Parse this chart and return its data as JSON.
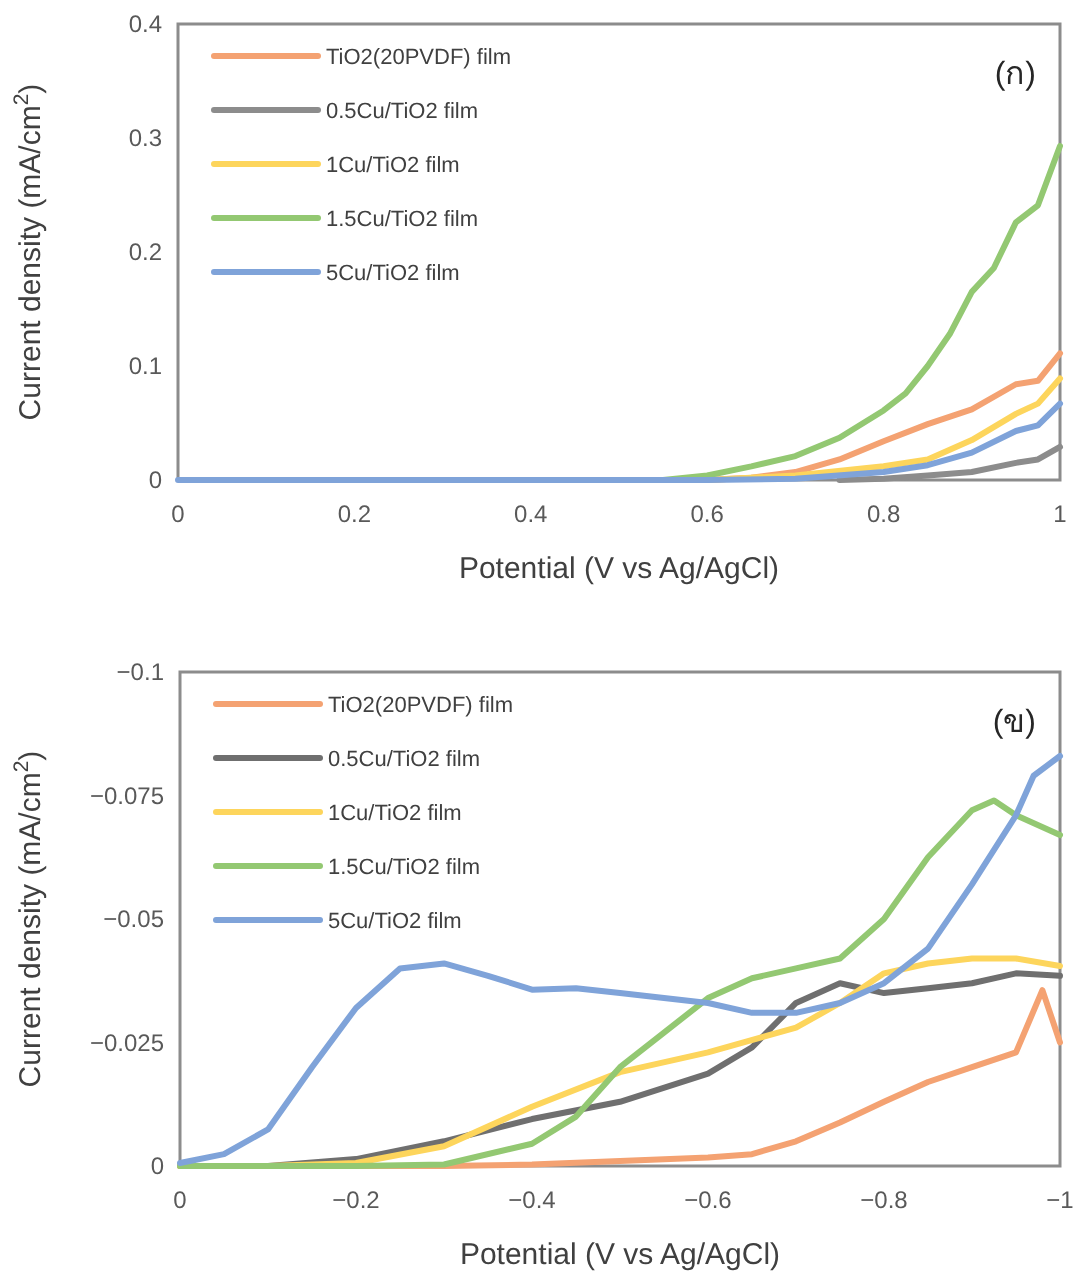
{
  "chart_data": [
    {
      "type": "line",
      "xlabel": "Potential (V vs Ag/AgCl)",
      "ylabel": "Current density (mA/cm$^{2}$)",
      "annotations": [
        "(ก)"
      ],
      "legend": "top left",
      "xlim": [
        0,
        1
      ],
      "ylim": [
        0,
        0.4
      ],
      "xticks": [
        0,
        0.2,
        0.4,
        0.6,
        0.8,
        1
      ],
      "yticks": [
        0,
        0.1,
        0.2,
        0.3,
        0.4
      ],
      "series": [
        {
          "name": "TiO2(20PVDF) film",
          "color": "#f4a272",
          "x": [
            0.6,
            0.65,
            0.7,
            0.75,
            0.8,
            0.85,
            0.9,
            0.95,
            0.975,
            1.0
          ],
          "values": [
            0,
            0.002,
            0.007,
            0.018,
            0.034,
            0.049,
            0.062,
            0.084,
            0.087,
            0.111
          ]
        },
        {
          "name": "0.5Cu/TiO2 film",
          "color": "#8c8c8c",
          "x": [
            0.75,
            0.8,
            0.85,
            0.9,
            0.95,
            0.975,
            1.0
          ],
          "values": [
            0,
            0.001,
            0.004,
            0.007,
            0.015,
            0.018,
            0.029
          ]
        },
        {
          "name": "1Cu/TiO2 film",
          "color": "#fdd55c",
          "x": [
            0.6,
            0.7,
            0.8,
            0.85,
            0.9,
            0.95,
            0.975,
            1.0
          ],
          "values": [
            0,
            0.004,
            0.012,
            0.018,
            0.035,
            0.058,
            0.067,
            0.089
          ]
        },
        {
          "name": "1.5Cu/TiO2 film",
          "color": "#93c872",
          "x": [
            0.55,
            0.6,
            0.65,
            0.7,
            0.75,
            0.8,
            0.825,
            0.85,
            0.875,
            0.9,
            0.925,
            0.95,
            0.975,
            1.0
          ],
          "values": [
            0,
            0.004,
            0.012,
            0.021,
            0.037,
            0.061,
            0.076,
            0.1,
            0.128,
            0.165,
            0.186,
            0.226,
            0.241,
            0.293
          ]
        },
        {
          "name": "5Cu/TiO2 film",
          "color": "#7fa3d9",
          "x": [
            0,
            0.2,
            0.4,
            0.6,
            0.7,
            0.8,
            0.85,
            0.9,
            0.95,
            0.975,
            1.0
          ],
          "values": [
            0,
            0,
            0,
            0,
            0.001,
            0.007,
            0.013,
            0.024,
            0.043,
            0.048,
            0.067
          ]
        }
      ]
    },
    {
      "type": "line",
      "xlabel": "Potential (V vs Ag/AgCl)",
      "ylabel": "Current density (mA/cm$^{2}$)",
      "annotations": [
        "(ข)"
      ],
      "legend": "top left",
      "xlim": [
        0,
        -1
      ],
      "ylim": [
        0,
        -0.1
      ],
      "xticks": [
        0,
        {
          "value": -0.2,
          "label": "−0.2"
        },
        {
          "value": -0.4,
          "label": "−0.4"
        },
        {
          "value": -0.6,
          "label": "−0.6"
        },
        {
          "value": -0.8,
          "label": "−0.8"
        },
        {
          "value": -1,
          "label": "−1"
        }
      ],
      "yticks": [
        0,
        {
          "value": -0.025,
          "label": "−0.025"
        },
        {
          "value": -0.05,
          "label": "−0.05"
        },
        {
          "value": -0.075,
          "label": "−0.075"
        },
        {
          "value": -0.1,
          "label": "−0.1"
        }
      ],
      "series": [
        {
          "name": "TiO2(20PVDF) film",
          "color": "#f4a272",
          "x": [
            0,
            -0.3,
            -0.4,
            -0.5,
            -0.6,
            -0.65,
            -0.7,
            -0.75,
            -0.8,
            -0.85,
            -0.9,
            -0.95,
            -0.98,
            -1.0
          ],
          "values": [
            0,
            0,
            -0.0003,
            -0.001,
            -0.0017,
            -0.0024,
            -0.005,
            -0.0088,
            -0.013,
            -0.017,
            -0.02,
            -0.023,
            -0.0356,
            -0.025
          ]
        },
        {
          "name": "0.5Cu/TiO2 film",
          "color": "#6f6f6f",
          "x": [
            0,
            -0.1,
            -0.2,
            -0.3,
            -0.4,
            -0.5,
            -0.6,
            -0.65,
            -0.7,
            -0.75,
            -0.8,
            -0.85,
            -0.9,
            -0.95,
            -1.0
          ],
          "values": [
            0,
            0,
            -0.0014,
            -0.005,
            -0.0095,
            -0.013,
            -0.0187,
            -0.024,
            -0.033,
            -0.037,
            -0.035,
            -0.036,
            -0.037,
            -0.039,
            -0.0385
          ]
        },
        {
          "name": "1Cu/TiO2 film",
          "color": "#fdd55c",
          "x": [
            0,
            -0.1,
            -0.2,
            -0.3,
            -0.4,
            -0.5,
            -0.6,
            -0.7,
            -0.75,
            -0.8,
            -0.85,
            -0.9,
            -0.95,
            -1.0
          ],
          "values": [
            0,
            0,
            -0.0006,
            -0.004,
            -0.012,
            -0.019,
            -0.023,
            -0.028,
            -0.033,
            -0.039,
            -0.041,
            -0.042,
            -0.042,
            -0.0405
          ]
        },
        {
          "name": "1.5Cu/TiO2 film",
          "color": "#93c872",
          "x": [
            0,
            -0.2,
            -0.3,
            -0.4,
            -0.45,
            -0.5,
            -0.55,
            -0.6,
            -0.65,
            -0.7,
            -0.75,
            -0.8,
            -0.85,
            -0.9,
            -0.925,
            -0.95,
            -1.0
          ],
          "values": [
            0,
            0,
            -0.0003,
            -0.0045,
            -0.01,
            -0.02,
            -0.027,
            -0.034,
            -0.038,
            -0.04,
            -0.042,
            -0.05,
            -0.0625,
            -0.072,
            -0.074,
            -0.071,
            -0.067
          ]
        },
        {
          "name": "5Cu/TiO2 film",
          "color": "#7fa3d9",
          "x": [
            0,
            -0.05,
            -0.1,
            -0.15,
            -0.2,
            -0.25,
            -0.3,
            -0.35,
            -0.4,
            -0.45,
            -0.5,
            -0.55,
            -0.6,
            -0.65,
            -0.7,
            -0.75,
            -0.8,
            -0.85,
            -0.9,
            -0.95,
            -0.97,
            -1.0
          ],
          "values": [
            -0.0006,
            -0.0024,
            -0.0074,
            -0.02,
            -0.032,
            -0.04,
            -0.041,
            -0.0385,
            -0.0357,
            -0.036,
            -0.035,
            -0.034,
            -0.033,
            -0.031,
            -0.031,
            -0.033,
            -0.037,
            -0.044,
            -0.057,
            -0.071,
            -0.079,
            -0.083
          ]
        }
      ]
    }
  ]
}
